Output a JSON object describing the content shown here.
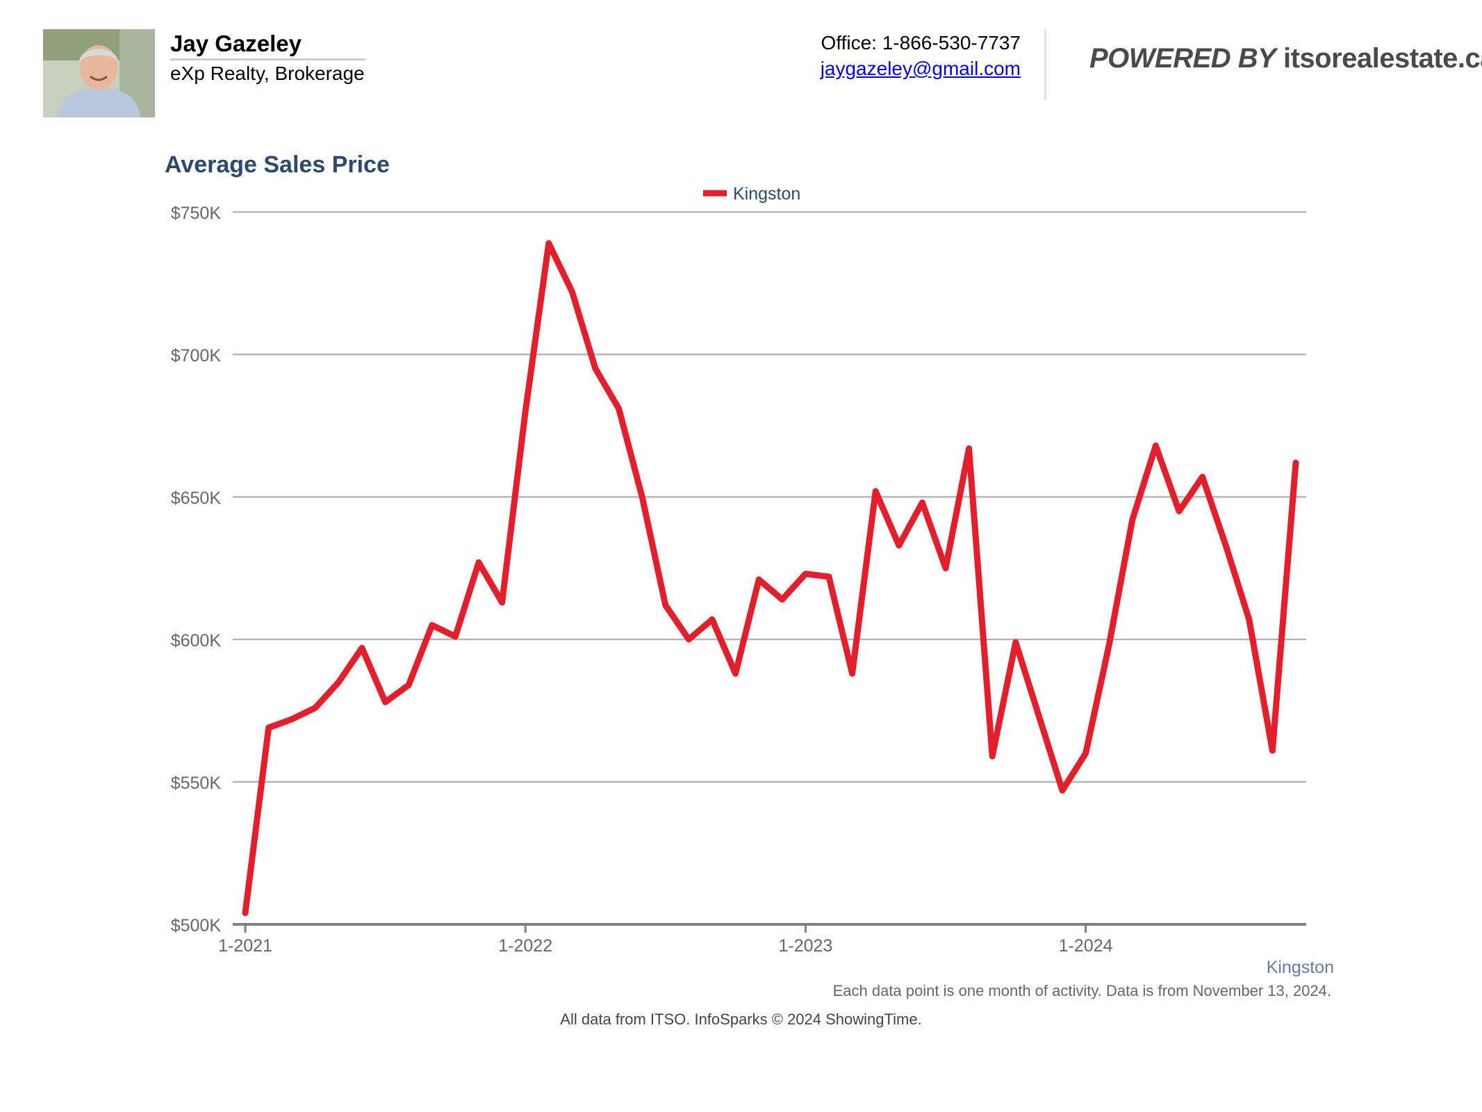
{
  "header": {
    "agent_name": "Jay Gazeley",
    "brokerage": "eXp Realty, Brokerage",
    "office": "Office: 1-866-530-7737",
    "email": "jaygazeley@gmail.com",
    "powered_by_prefix": "POWERED BY",
    "powered_by_site": "itsorealestate.ca"
  },
  "colors": {
    "series": "#e41e2b",
    "title": "#2c4a6b",
    "grid": "#b5b5b5",
    "axis": "#808080",
    "tick_text": "#666666",
    "legend_text": "#2c4a6b",
    "source_label": "#5b7fa6"
  },
  "chart_data": {
    "type": "line",
    "title": "Average Sales Price",
    "xlabel": "",
    "ylabel": "",
    "ylim": [
      500000,
      750000
    ],
    "y_ticks": [
      500000,
      550000,
      600000,
      650000,
      700000,
      750000
    ],
    "y_tick_labels": [
      "$500K",
      "$550K",
      "$600K",
      "$650K",
      "$700K",
      "$750K"
    ],
    "x_ticks": [
      0,
      12,
      24,
      36
    ],
    "x_tick_labels": [
      "1-2021",
      "1-2022",
      "1-2023",
      "1-2024"
    ],
    "legend_position": "top-center",
    "grid": true,
    "source_label": "Kingston",
    "series": [
      {
        "name": "Kingston",
        "x": [
          0,
          1,
          2,
          3,
          4,
          5,
          6,
          7,
          8,
          9,
          10,
          11,
          12,
          13,
          14,
          15,
          16,
          17,
          18,
          19,
          20,
          21,
          22,
          23,
          24,
          25,
          26,
          27,
          28,
          29,
          30,
          31,
          32,
          33,
          34,
          35,
          36,
          37,
          38,
          39,
          40,
          41,
          42,
          43,
          44,
          45
        ],
        "values": [
          504000,
          569000,
          572000,
          576000,
          585000,
          597000,
          578000,
          584000,
          605000,
          601000,
          627000,
          613000,
          680000,
          739000,
          722000,
          695000,
          681000,
          650000,
          612000,
          600000,
          607000,
          588000,
          621000,
          614000,
          623000,
          622000,
          588000,
          652000,
          633000,
          648000,
          625000,
          667000,
          559000,
          599000,
          573000,
          547000,
          560000,
          598000,
          642000,
          668000,
          645000,
          657000,
          633000,
          607000,
          561000,
          662000
        ]
      }
    ]
  },
  "footnote": "Each data point is one month of activity. Data is from November 13, 2024.",
  "credit": "All data from ITSO. InfoSparks © 2024 ShowingTime."
}
